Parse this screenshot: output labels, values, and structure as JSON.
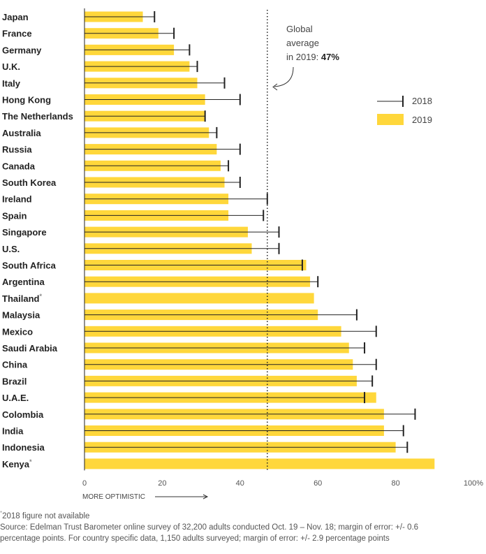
{
  "chart_data": {
    "type": "bar",
    "orientation": "horizontal",
    "categories": [
      "Japan",
      "France",
      "Germany",
      "U.K.",
      "Italy",
      "Hong Kong",
      "The Netherlands",
      "Australia",
      "Russia",
      "Canada",
      "South Korea",
      "Ireland",
      "Spain",
      "Singapore",
      "U.S.",
      "South Africa",
      "Argentina",
      "Thailand",
      "Malaysia",
      "Mexico",
      "Saudi Arabia",
      "China",
      "Brazil",
      "U.A.E.",
      "Colombia",
      "India",
      "Indonesia",
      "Kenya"
    ],
    "footnote_marked": [
      "Thailand",
      "Kenya"
    ],
    "footnote_marker": "*",
    "series": [
      {
        "name": "2019",
        "mark": "bar",
        "color": "#FFD73B",
        "values": [
          15,
          19,
          23,
          27,
          29,
          31,
          31,
          32,
          34,
          35,
          36,
          37,
          37,
          42,
          43,
          57,
          58,
          59,
          60,
          66,
          68,
          69,
          70,
          75,
          77,
          77,
          80,
          90
        ]
      },
      {
        "name": "2018",
        "mark": "tick",
        "color": "#222222",
        "values": [
          18,
          23,
          27,
          29,
          36,
          40,
          31,
          34,
          40,
          37,
          40,
          47,
          46,
          50,
          50,
          56,
          60,
          null,
          70,
          75,
          72,
          75,
          74,
          72,
          85,
          82,
          83,
          null
        ]
      }
    ],
    "xlim": [
      0,
      100
    ],
    "xticks": [
      "0",
      "20",
      "40",
      "60",
      "80",
      "100%"
    ],
    "xticks_values": [
      0,
      20,
      40,
      60,
      80,
      100
    ],
    "xlabel": "MORE OPTIMISTIC",
    "reference_line": {
      "value": 47,
      "style": "dotted"
    },
    "annotation": {
      "lines": [
        "Global",
        "average",
        "in 2019: "
      ],
      "value": "47%"
    },
    "legend": {
      "placement": "top-right",
      "items": [
        "2018",
        "2019"
      ]
    },
    "grid": false
  },
  "footer": {
    "note": "2018 figure not available",
    "source_lines": [
      "Source: Edelman Trust Barometer online survey of 32,200 adults conducted Oct. 19 – Nov. 18; margin of error: +/- 0.6",
      "percentage points. For country specific data, 1,150 adults surveyed; margin of error: +/- 2.9 percentage points"
    ]
  }
}
